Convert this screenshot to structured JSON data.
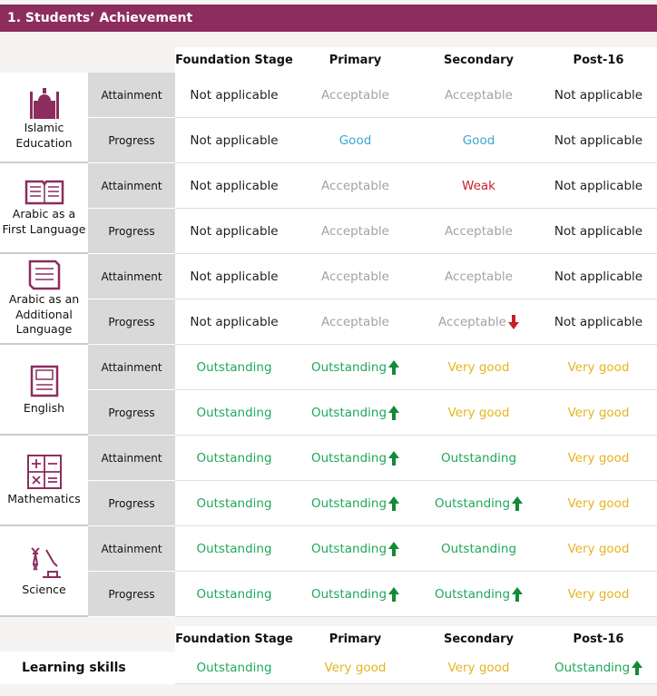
{
  "header": {
    "title": "1. Students’ Achievement"
  },
  "table": {
    "columns": [
      "Foundation Stage",
      "Primary",
      "Secondary",
      "Post-16"
    ],
    "subjects": [
      {
        "name": "Islamic Education",
        "rows": [
          {
            "measure": "Attainment",
            "cells": [
              "Not applicable",
              "Acceptable",
              "Acceptable",
              "Not applicable"
            ]
          },
          {
            "measure": "Progress",
            "cells": [
              "Not applicable",
              "Good",
              "Good",
              "Not applicable"
            ]
          }
        ]
      },
      {
        "name": "Arabic as a First Language",
        "rows": [
          {
            "measure": "Attainment",
            "cells": [
              "Not applicable",
              "Acceptable",
              "Weak",
              "Not applicable"
            ]
          },
          {
            "measure": "Progress",
            "cells": [
              "Not applicable",
              "Acceptable",
              "Acceptable",
              "Not applicable"
            ]
          }
        ]
      },
      {
        "name": "Arabic as an Additional Language",
        "rows": [
          {
            "measure": "Attainment",
            "cells": [
              "Not applicable",
              "Acceptable",
              "Acceptable",
              "Not applicable"
            ]
          },
          {
            "measure": "Progress",
            "cells": [
              "Not applicable",
              "Acceptable",
              "Acceptable",
              "Not applicable"
            ]
          }
        ]
      },
      {
        "name": "English",
        "rows": [
          {
            "measure": "Attainment",
            "cells": [
              "Outstanding",
              "Outstanding",
              "Very good",
              "Very good"
            ]
          },
          {
            "measure": "Progress",
            "cells": [
              "Outstanding",
              "Outstanding",
              "Very good",
              "Very good"
            ]
          }
        ]
      },
      {
        "name": "Mathematics",
        "rows": [
          {
            "measure": "Attainment",
            "cells": [
              "Outstanding",
              "Outstanding",
              "Outstanding",
              "Very good"
            ]
          },
          {
            "measure": "Progress",
            "cells": [
              "Outstanding",
              "Outstanding",
              "Outstanding",
              "Very good"
            ]
          }
        ]
      },
      {
        "name": "Science",
        "rows": [
          {
            "measure": "Attainment",
            "cells": [
              "Outstanding",
              "Outstanding",
              "Outstanding",
              "Very good"
            ]
          },
          {
            "measure": "Progress",
            "cells": [
              "Outstanding",
              "Outstanding",
              "Outstanding",
              "Very good"
            ]
          }
        ]
      }
    ]
  },
  "learning_skills": {
    "columns": [
      "Foundation Stage",
      "Primary",
      "Secondary",
      "Post-16"
    ],
    "label": "Learning skills",
    "cells": [
      "Outstanding",
      "Very good",
      "Very good",
      "Outstanding"
    ]
  }
}
